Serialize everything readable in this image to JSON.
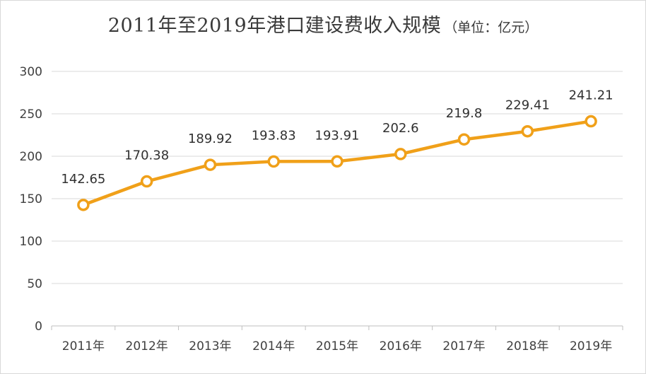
{
  "chart_data": {
    "type": "line",
    "title": "2011年至2019年港口建设费收入规模",
    "subtitle": "（单位：亿元）",
    "categories": [
      "2011年",
      "2012年",
      "2013年",
      "2014年",
      "2015年",
      "2016年",
      "2017年",
      "2018年",
      "2019年"
    ],
    "series": [
      {
        "values": [
          142.65,
          170.38,
          189.92,
          193.83,
          193.91,
          202.6,
          219.8,
          229.41,
          241.21
        ],
        "labels": [
          "142.65",
          "170.38",
          "189.92",
          "193.83",
          "193.91",
          "202.6",
          "219.8",
          "229.41",
          "241.21"
        ],
        "color": "#f0a019"
      }
    ],
    "y_ticks": [
      "0",
      "50",
      "100",
      "150",
      "200",
      "250",
      "300"
    ],
    "ylim": [
      0,
      300
    ],
    "grid": true,
    "legend": "none"
  }
}
